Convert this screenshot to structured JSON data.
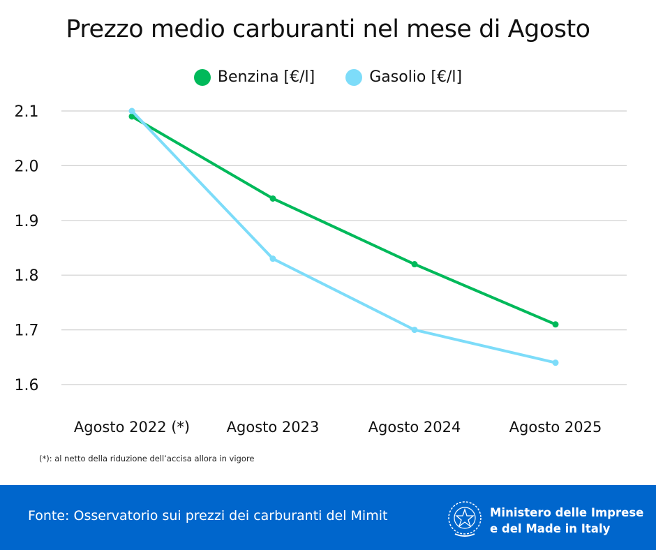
{
  "chart_data": {
    "type": "line",
    "title": "Prezzo medio carburanti nel mese di Agosto",
    "categories": [
      "Agosto 2022 (*)",
      "Agosto 2023",
      "Agosto 2024",
      "Agosto 2025"
    ],
    "series": [
      {
        "name": "Benzina [€/l]",
        "color": "#00b95a",
        "values": [
          2.09,
          1.94,
          1.82,
          1.71
        ]
      },
      {
        "name": "Gasolio [€/l]",
        "color": "#7ddcf9",
        "values": [
          2.1,
          1.83,
          1.7,
          1.64
        ]
      }
    ],
    "yticks": [
      "1.6",
      "1.7",
      "1.8",
      "1.9",
      "2.0",
      "2.1"
    ],
    "ylim": [
      1.6,
      2.1
    ],
    "grid": true,
    "legend": "top-center",
    "xlabel": "",
    "ylabel": ""
  },
  "note": "(*): al netto della riduzione dell’accisa allora in vigore",
  "footer": {
    "source": "Fonte: Osservatorio sui prezzi dei carburanti del Mimit",
    "ministry_line1": "Ministero delle Imprese",
    "ministry_line2": "e del Made in Italy",
    "background": "#0066cc"
  }
}
